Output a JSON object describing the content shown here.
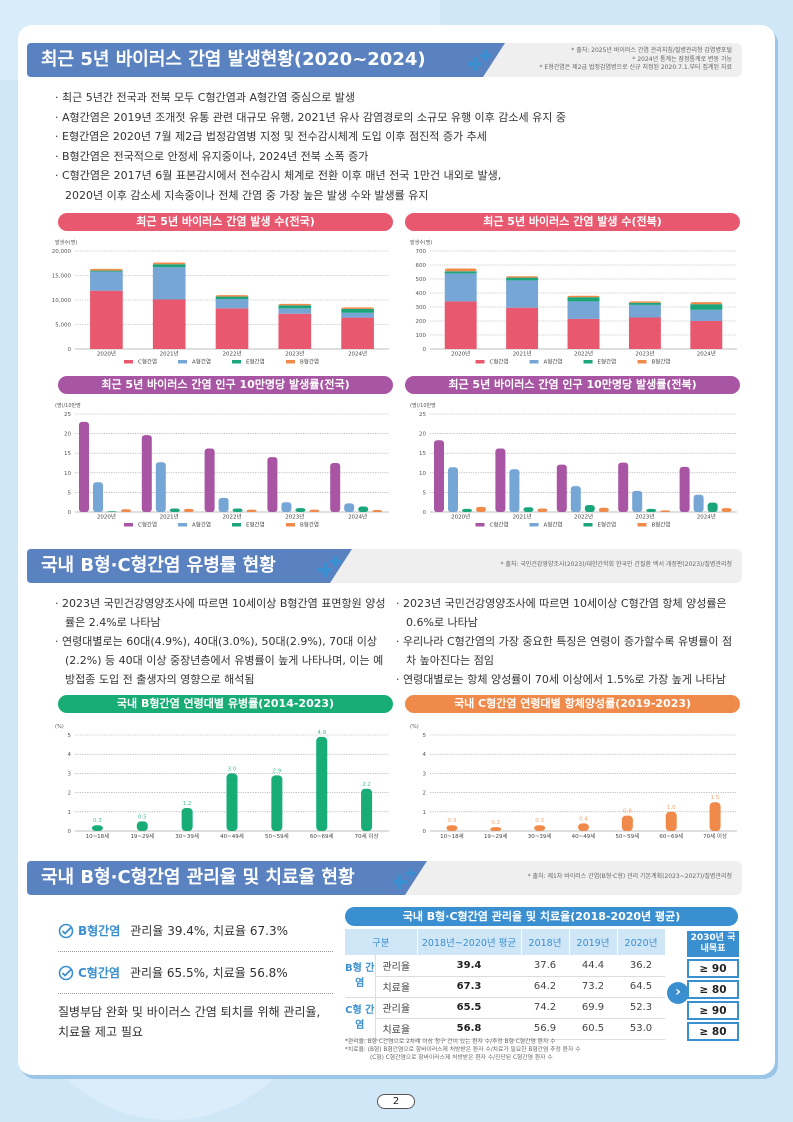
{
  "section1": {
    "title": "최근 5년 바이러스 간염 발생현황(2020~2024)",
    "sources": [
      "* 출처: 2025년 바이러스 간염 관리지침/질병관리청 감염병포털",
      "* 2024년 통계는 잠정통계로 변동 가능",
      "* E형간염은 제2급 법정감염병으로 신규 지정된 2020.7.1.부터 집계된 자료"
    ],
    "bullets": [
      "· 최근 5년간 전국과 전북 모두 C형간염과 A형간염 중심으로 발생",
      "· A형간염은 2019년 조개젓 유통 관련 대규모 유행, 2021년 유사 감염경로의 소규모 유행 이후 감소세 유지 중",
      "· E형간염은 2020년 7월 제2급 법정감염병 지정 및 전수감시체계 도입 이후 점진적 증가 추세",
      "· B형간염은 전국적으로 안정세 유지중이나, 2024년 전북 소폭 증가",
      "· C형간염은 2017년 6월 표본감시에서 전수감시 체계로 전환 이후 매년 전국 1만건 내외로 발생,",
      "2020년 이후 감소세 지속중이나 전체 간염 중 가장 높은 발생 수와 발생률 유지"
    ]
  },
  "section2": {
    "title": "국내 B형·C형간염 유병률 현황",
    "source": "* 출처: 국민건강영양조사(2023)/대한간학회 한국인 간질환 백서 개정판(2023)/질병관리청",
    "bullets_left": [
      "· 2023년 국민건강영양조사에 따르면 10세이상 B형간염 표면항원 양성률은 2.4%로 나타남",
      "· 연령대별로는 60대(4.9%), 40대(3.0%), 50대(2.9%), 70대 이상(2.2%) 등 40대 이상 중장년층에서 유병률이 높게 나타나며, 이는 예방접종 도입 전 출생자의 영향으로 해석됨"
    ],
    "bullets_right": [
      "· 2023년 국민건강영양조사에 따르면 10세이상 C형간염 항체 양성률은 0.6%로 나타남",
      "· 우리나라 C형간염의 가장 중요한 특징은 연령이 증가할수록 유병률이 점차 높아진다는 점임",
      "· 연령대별로는 항체 양성률이 70세 이상에서 1.5%로 가장 높게 나타남"
    ]
  },
  "section3": {
    "title": "국내 B형·C형간염 관리율 및 치료율 현황",
    "source": "* 출처: 제1차 바이러스 간염(B형·C형) 관리 기본계획(2023~2027)/질병관리청",
    "notes": [
      {
        "label": "B형간염",
        "text": "관리율 39.4%, 치료율 67.3%"
      },
      {
        "label": "C형간염",
        "text": "관리율 65.5%, 치료율 56.8%"
      }
    ],
    "conclusion": "질병부담 완화 및 바이러스 간염 퇴치를 위해 관리율, 치료율 제고 필요",
    "table": {
      "title": "국내 B형·C형간염 관리율 및 치료율(2018-2020년 평균)",
      "headers": [
        "구분",
        "2018년~2020년 평균",
        "2018년",
        "2019년",
        "2020년"
      ],
      "target_header": "2030년 국내목표",
      "groups": [
        {
          "name": "B형 간염",
          "rows": [
            {
              "label": "관리율",
              "avg": "39.4",
              "y2018": "37.6",
              "y2019": "44.4",
              "y2020": "36.2",
              "target": "≥ 90"
            },
            {
              "label": "치료율",
              "avg": "67.3",
              "y2018": "64.2",
              "y2019": "73.2",
              "y2020": "64.5",
              "target": "≥ 80"
            }
          ]
        },
        {
          "name": "C형 간염",
          "rows": [
            {
              "label": "관리율",
              "avg": "65.5",
              "y2018": "74.2",
              "y2019": "69.9",
              "y2020": "52.3",
              "target": "≥ 90"
            },
            {
              "label": "치료율",
              "avg": "56.8",
              "y2018": "56.9",
              "y2019": "60.5",
              "y2020": "53.0",
              "target": "≥ 80"
            }
          ]
        }
      ],
      "footnotes": [
        "*관리율: B형·C간염으로 2차례 이상 청구 건이 있는 환자 수/추정 B형·C형간염 환자 수",
        "*치료율: (B형) B형간염으로 항바이러스제 처방받은 환자 수/치료가 필요한 B형간염 추정 환자 수",
        "(C형) C형간염으로 항바이러스제 처방받은 환자 수/진단된 C형간염 환자 수"
      ]
    }
  },
  "page_number": "2",
  "colors": {
    "C": "#e8586f",
    "A": "#75a6d6",
    "E": "#1aa57a",
    "B": "#f08a4b",
    "purple": "#a855a3",
    "green": "#18ad77",
    "orange": "#f08a4b",
    "blue": "#5a82c0"
  },
  "chart_data": [
    {
      "type": "bar",
      "stacked": true,
      "title": "최근 5년 바이러스 간염 발생 수(전국)",
      "ylabel": "발생수(명)",
      "categories": [
        "2020년",
        "2021년",
        "2022년",
        "2023년",
        "2024년"
      ],
      "ylim": [
        0,
        20000
      ],
      "yticks": [
        0,
        5000,
        10000,
        15000,
        20000
      ],
      "ytick_labels": [
        "0",
        "5,000",
        "10,000",
        "15,000",
        "20,000"
      ],
      "series": [
        {
          "name": "C형간염",
          "values": [
            11900,
            10100,
            8300,
            7200,
            6400
          ]
        },
        {
          "name": "A형간염",
          "values": [
            3900,
            6600,
            1900,
            1100,
            1000
          ]
        },
        {
          "name": "E형간염",
          "values": [
            200,
            600,
            500,
            600,
            800
          ]
        },
        {
          "name": "B형간염",
          "values": [
            350,
            350,
            300,
            300,
            300
          ]
        }
      ],
      "legend": "bottom"
    },
    {
      "type": "bar",
      "stacked": true,
      "title": "최근 5년 바이러스 간염 발생 수(전북)",
      "ylabel": "발생수(명)",
      "categories": [
        "2020년",
        "2021년",
        "2022년",
        "2023년",
        "2024년"
      ],
      "ylim": [
        0,
        700
      ],
      "yticks": [
        0,
        100,
        200,
        300,
        400,
        500,
        600,
        700
      ],
      "ytick_labels": [
        "0",
        "100",
        "200",
        "300",
        "400",
        "500",
        "600",
        "700"
      ],
      "series": [
        {
          "name": "C형간염",
          "values": [
            340,
            295,
            215,
            225,
            200
          ]
        },
        {
          "name": "A형간염",
          "values": [
            200,
            195,
            125,
            90,
            80
          ]
        },
        {
          "name": "E형간염",
          "values": [
            15,
            20,
            30,
            15,
            40
          ]
        },
        {
          "name": "B형간염",
          "values": [
            20,
            10,
            10,
            10,
            15
          ]
        }
      ],
      "legend": "bottom"
    },
    {
      "type": "bar",
      "stacked": false,
      "title": "최근 5년 바이러스 간염 인구 10만명당 발생률(전국)",
      "ylabel": "(명)/10만명",
      "categories": [
        "2020년",
        "2021년",
        "2022년",
        "2023년",
        "2024년"
      ],
      "ylim": [
        0,
        25
      ],
      "yticks": [
        0,
        5,
        10,
        15,
        20,
        25
      ],
      "ytick_labels": [
        "0",
        "5",
        "10",
        "15",
        "20",
        "25"
      ],
      "series": [
        {
          "name": "C형간염",
          "values": [
            23.0,
            19.6,
            16.2,
            14.0,
            12.5
          ]
        },
        {
          "name": "A형간염",
          "values": [
            7.6,
            12.7,
            3.6,
            2.5,
            2.2
          ]
        },
        {
          "name": "E형간염",
          "values": [
            0.2,
            0.9,
            0.9,
            1.0,
            1.4
          ]
        },
        {
          "name": "B형간염",
          "values": [
            0.7,
            0.8,
            0.6,
            0.6,
            0.5
          ]
        }
      ],
      "legend": "bottom"
    },
    {
      "type": "bar",
      "stacked": false,
      "title": "최근 5년 바이러스 간염 인구 10만명당 발생률(전북)",
      "ylabel": "(명)/10만명",
      "categories": [
        "2020년",
        "2021년",
        "2022년",
        "2023년",
        "2024년"
      ],
      "ylim": [
        0,
        25
      ],
      "yticks": [
        0,
        5,
        10,
        15,
        20,
        25
      ],
      "ytick_labels": [
        "0",
        "5",
        "10",
        "15",
        "20",
        "25"
      ],
      "series": [
        {
          "name": "C형간염",
          "values": [
            18.3,
            16.2,
            12.1,
            12.6,
            11.5
          ]
        },
        {
          "name": "A형간염",
          "values": [
            11.4,
            10.9,
            6.6,
            5.4,
            4.4
          ]
        },
        {
          "name": "E형간염",
          "values": [
            0.8,
            1.2,
            1.8,
            0.8,
            2.4
          ]
        },
        {
          "name": "B형간염",
          "values": [
            1.3,
            0.9,
            1.1,
            0.4,
            1.0
          ]
        }
      ],
      "legend": "bottom"
    },
    {
      "type": "bar",
      "title": "국내 B형간염 연령대별 유병률(2014-2023)",
      "ylabel": "(%)",
      "categories": [
        "10~18세",
        "19~29세",
        "30~39세",
        "40~49세",
        "50~59세",
        "60~69세",
        "70세 이상"
      ],
      "values": [
        0.3,
        0.5,
        1.2,
        3.0,
        2.9,
        4.9,
        2.2
      ],
      "value_labels": [
        "0.3",
        "0.5",
        "1.2",
        "3.0",
        "2.9",
        "4.9",
        "2.2"
      ],
      "ylim": [
        0,
        5
      ],
      "yticks": [
        0,
        1,
        2,
        3,
        4,
        5
      ],
      "ytick_labels": [
        "0",
        "1",
        "2",
        "3",
        "4",
        "5"
      ]
    },
    {
      "type": "bar",
      "title": "국내 C형간염 연령대별 항체양성률(2019-2023)",
      "ylabel": "(%)",
      "categories": [
        "10~18세",
        "19~29세",
        "30~39세",
        "40~49세",
        "50~59세",
        "60~69세",
        "70세 이상"
      ],
      "values": [
        0.3,
        0.2,
        0.3,
        0.4,
        0.8,
        1.0,
        1.5
      ],
      "value_labels": [
        "0.3",
        "0.2",
        "0.3",
        "0.4",
        "0.8",
        "1.0",
        "1.5"
      ],
      "ylim": [
        0,
        5
      ],
      "yticks": [
        0,
        1,
        2,
        3,
        4,
        5
      ],
      "ytick_labels": [
        "0",
        "1",
        "2",
        "3",
        "4",
        "5"
      ]
    }
  ]
}
